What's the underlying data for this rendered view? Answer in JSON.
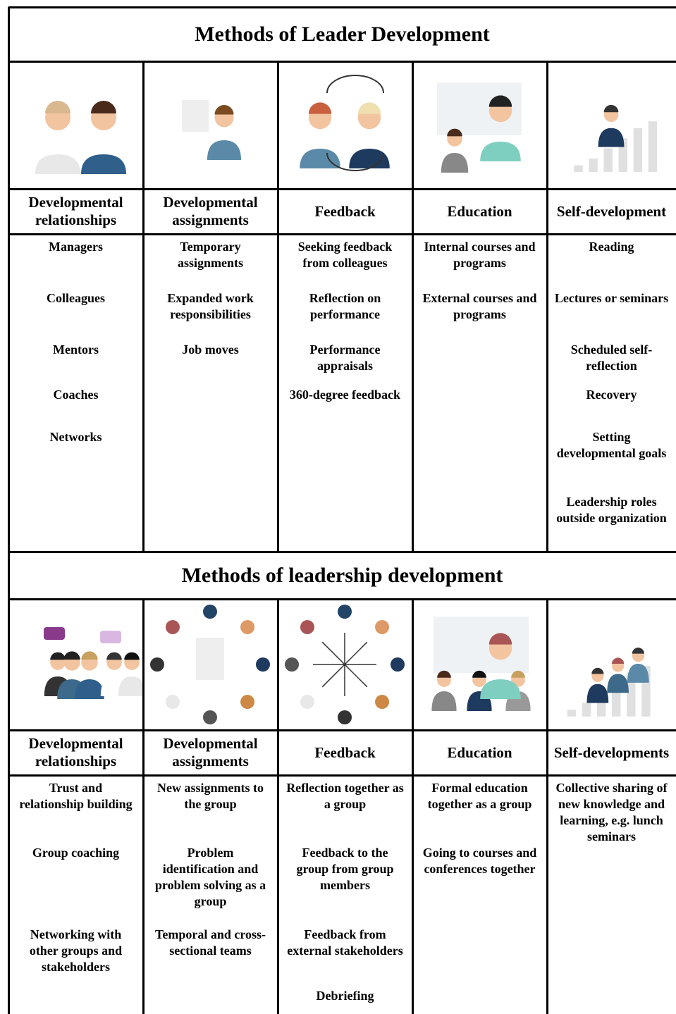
{
  "sections": [
    {
      "title": "Methods of Leader Development",
      "columns": [
        {
          "header": "Developmental relationships",
          "items": [
            "Managers",
            "Colleagues",
            "Mentors",
            "Coaches",
            "Networks"
          ]
        },
        {
          "header": "Developmental assignments",
          "items": [
            "Temporary assignments",
            "Expanded work responsibilities",
            "Job moves"
          ]
        },
        {
          "header": "Feedback",
          "items": [
            "Seeking feedback from colleagues",
            "Reflection on performance",
            "Performance appraisals",
            "360-degree feedback"
          ]
        },
        {
          "header": "Education",
          "items": [
            "Internal courses and programs",
            "External courses and programs"
          ]
        },
        {
          "header": "Self-development",
          "items": [
            "Reading",
            "Lectures or seminars",
            "Scheduled self-reflection",
            "Recovery",
            "Setting developmental goals",
            "Leadership roles outside organization"
          ]
        }
      ]
    },
    {
      "title": "Methods of leadership development",
      "columns": [
        {
          "header": "Developmental relationships",
          "items": [
            "Trust and relationship building",
            "Group coaching",
            "Networking with other groups and stakeholders"
          ]
        },
        {
          "header": "Developmental assignments",
          "items": [
            "New assignments to the group",
            "Problem identification and problem solving as a group",
            "Temporal and cross-sectional teams"
          ]
        },
        {
          "header": "Feedback",
          "items": [
            "Reflection together as a group",
            "Feedback to the group from group members",
            "Feedback from external stakeholders",
            "Debriefing"
          ]
        },
        {
          "header": "Education",
          "items": [
            "Formal education together as a group",
            "Going to courses and conferences together"
          ]
        },
        {
          "header": "Self-developments",
          "items": [
            "Collective sharing of new knowledge and learning, e.g. lunch seminars"
          ]
        }
      ]
    }
  ]
}
